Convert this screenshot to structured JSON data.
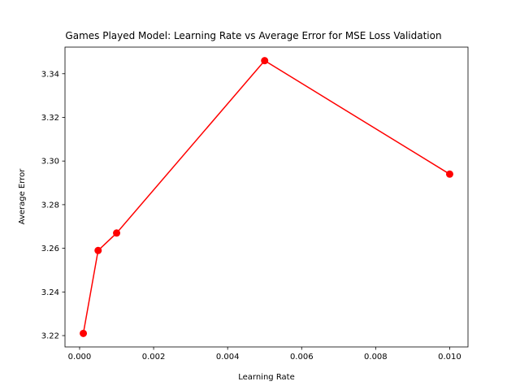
{
  "chart_data": {
    "type": "line",
    "title": "Games Played Model: Learning Rate vs Average Error for MSE Loss Validation",
    "xlabel": "Learning Rate",
    "ylabel": "Average Error",
    "xlim": [
      -0.000395,
      0.010495
    ],
    "ylim": [
      3.2148,
      3.3522
    ],
    "x_ticks": [
      0.0,
      0.002,
      0.004,
      0.006,
      0.008,
      0.01
    ],
    "x_tick_labels": [
      "0.000",
      "0.002",
      "0.004",
      "0.006",
      "0.008",
      "0.010"
    ],
    "y_ticks": [
      3.22,
      3.24,
      3.26,
      3.28,
      3.3,
      3.32,
      3.34
    ],
    "y_tick_labels": [
      "3.22",
      "3.24",
      "3.26",
      "3.28",
      "3.30",
      "3.32",
      "3.34"
    ],
    "grid": false,
    "series": [
      {
        "color": "#ff0000",
        "marker": "circle",
        "x": [
          0.0001,
          0.0005,
          0.001,
          0.005,
          0.01
        ],
        "y": [
          3.221,
          3.259,
          3.267,
          3.346,
          3.294
        ]
      }
    ]
  }
}
